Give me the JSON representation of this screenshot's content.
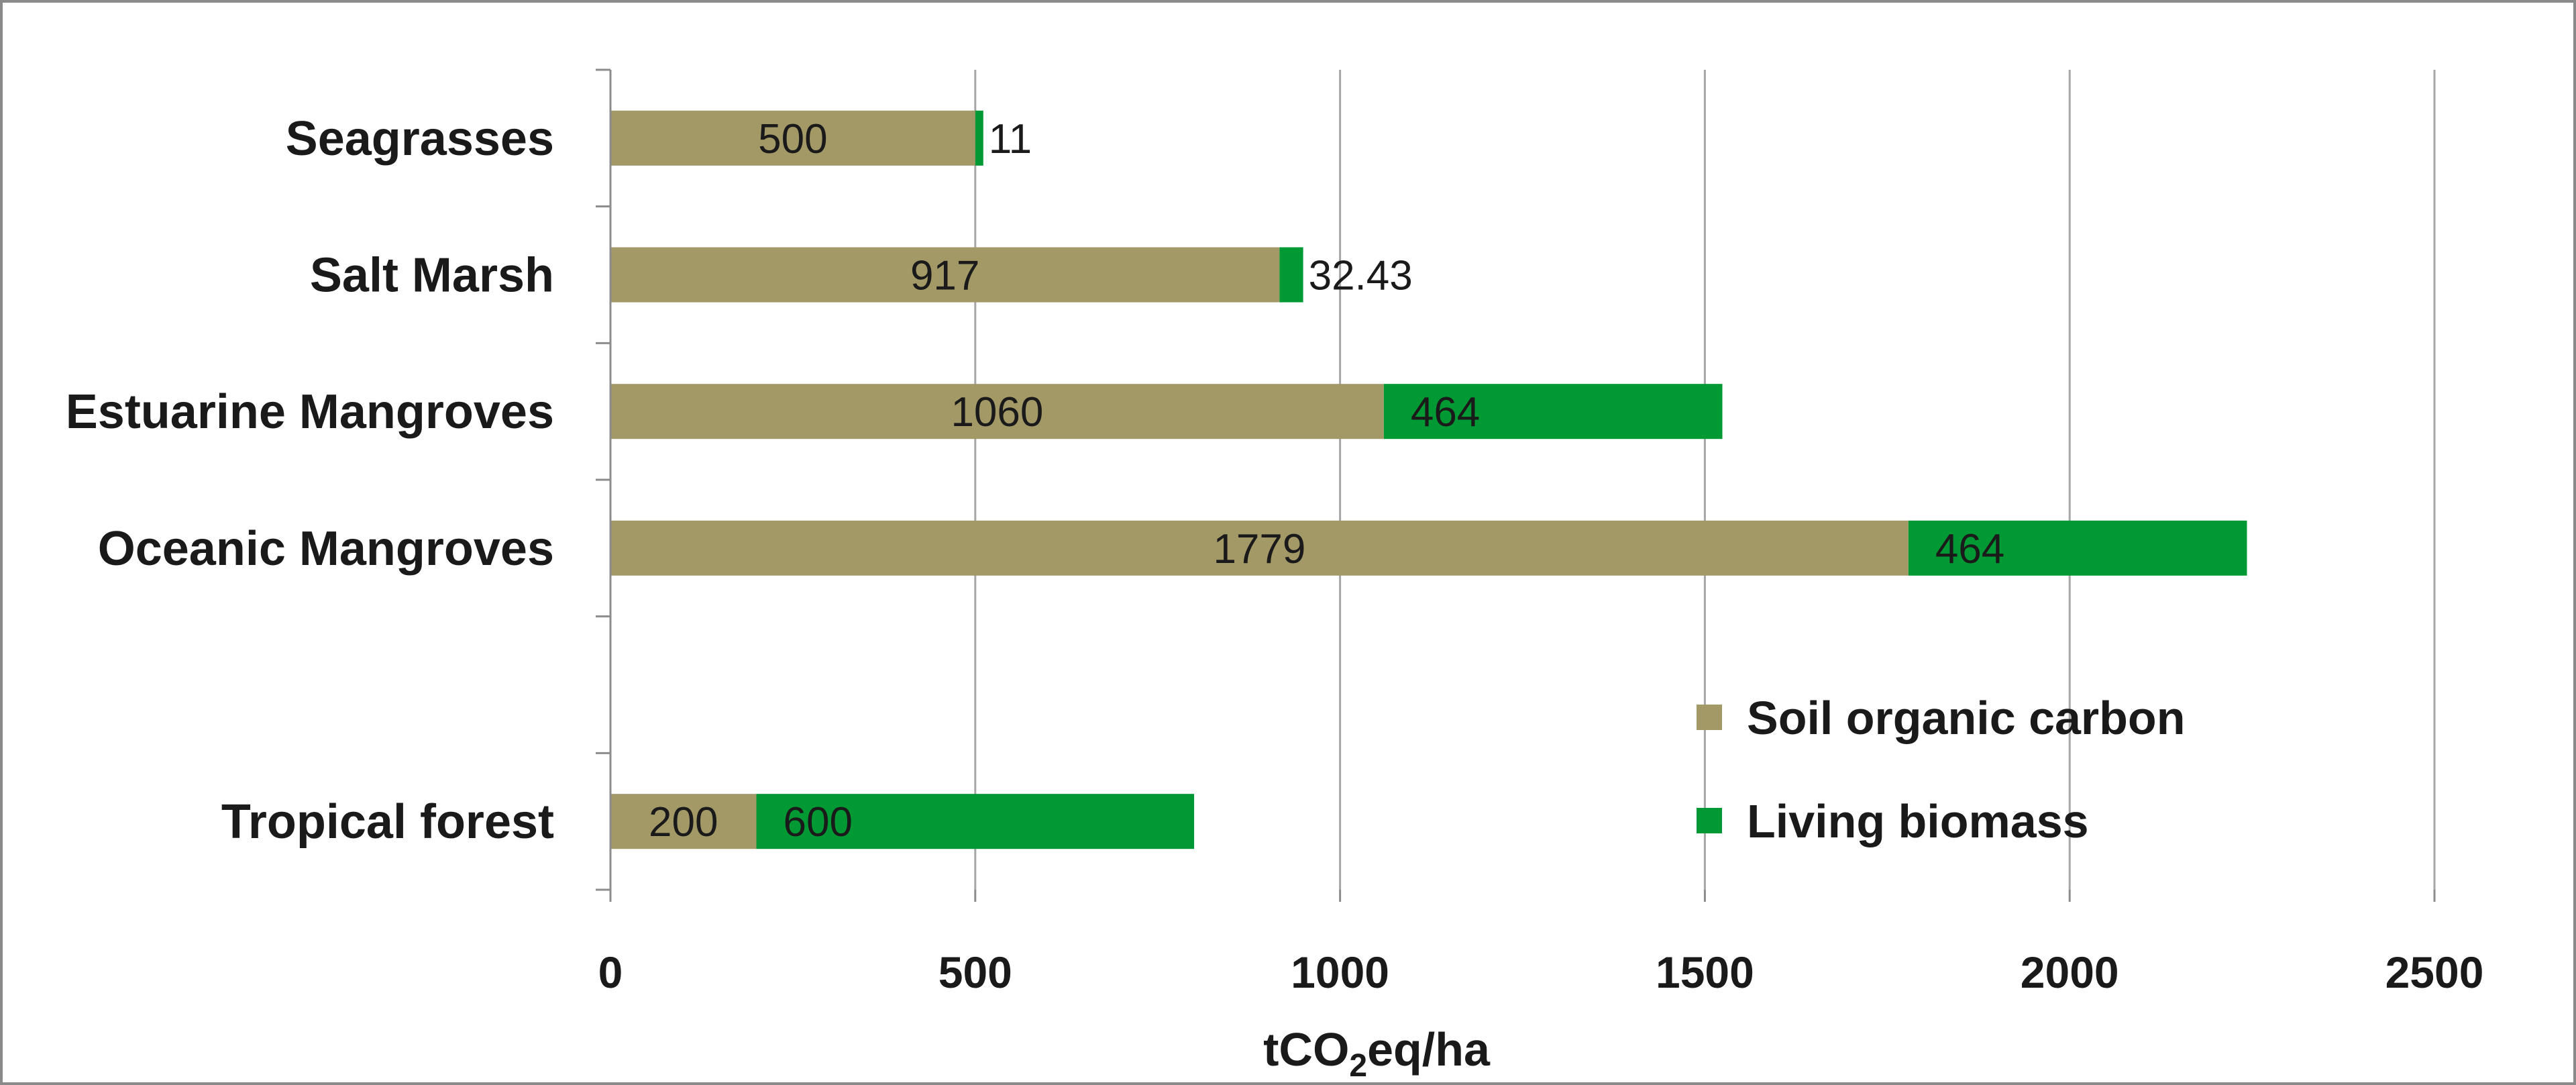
{
  "chart_data": {
    "type": "bar",
    "orientation": "horizontal",
    "stacked": true,
    "categories": [
      "Seagrasses",
      "Salt Marsh",
      "Estuarine Mangroves",
      "Oceanic Mangroves",
      "",
      "Tropical forest"
    ],
    "series": [
      {
        "name": "Soil organic carbon",
        "color": "#a39967",
        "values": [
          500,
          917,
          1060,
          1779,
          null,
          200
        ],
        "labels": [
          "500",
          "917",
          "1060",
          "1779",
          "",
          "200"
        ]
      },
      {
        "name": "Living biomass",
        "color": "#009933",
        "values": [
          11,
          32.43,
          464,
          464,
          null,
          600
        ],
        "labels": [
          "11",
          "32.43",
          "464",
          "464",
          "",
          "600"
        ]
      }
    ],
    "xlim": [
      0,
      2500
    ],
    "xticks": [
      0,
      500,
      1000,
      1500,
      2000,
      2500
    ],
    "xlabel_parts": [
      "tCO",
      "2",
      "eq/ha"
    ],
    "grid": true,
    "legend_position": "bottom-right"
  }
}
